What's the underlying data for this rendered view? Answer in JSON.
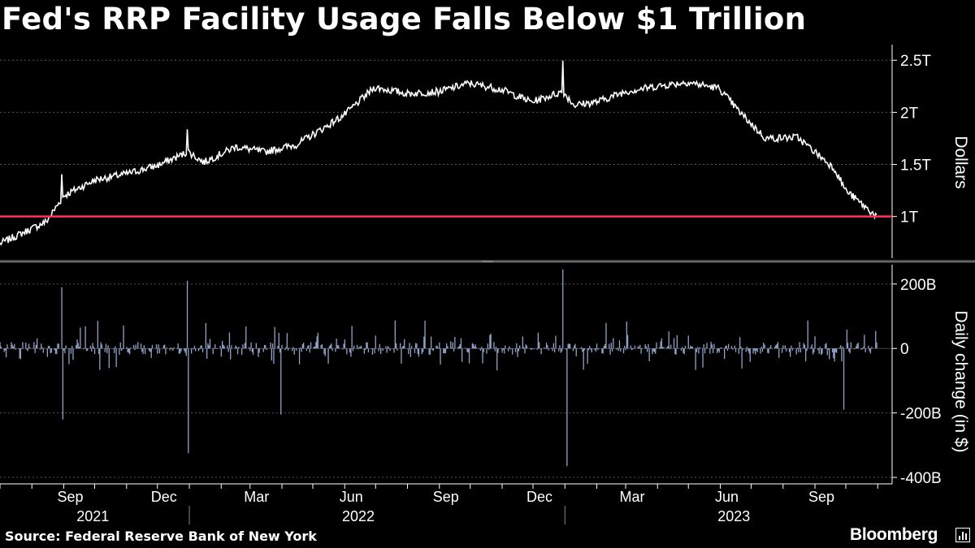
{
  "title": "Fed's RRP Facility Usage Falls Below $1 Trillion",
  "source": "Source: Federal Reserve Bank of New York",
  "brand": "Bloomberg",
  "colors": {
    "background": "#000000",
    "line": "#ffffff",
    "threshold": "#ff3355",
    "bars": "#8fa3c8",
    "grid": "#555555"
  },
  "chart_data": [
    {
      "type": "line",
      "ylabel": "Dollars",
      "yticks": [
        "2.5T",
        "2T",
        "1.5T",
        "1T"
      ],
      "ytick_values": [
        2.5,
        2.0,
        1.5,
        1.0
      ],
      "ylim": [
        0.6,
        2.65
      ],
      "grid": true,
      "reference_line": 1.0,
      "x_anchor_dates": [
        "2021-07-01",
        "2021-08-15",
        "2021-09-01",
        "2021-10-01",
        "2021-11-01",
        "2021-12-01",
        "2021-12-31",
        "2022-01-15",
        "2022-02-15",
        "2022-03-15",
        "2022-04-15",
        "2022-05-15",
        "2022-06-01",
        "2022-06-30",
        "2022-08-01",
        "2022-09-01",
        "2022-09-30",
        "2022-10-31",
        "2022-11-30",
        "2022-12-30",
        "2023-01-10",
        "2023-02-01",
        "2023-03-01",
        "2023-03-31",
        "2023-04-30",
        "2023-05-31",
        "2023-06-20",
        "2023-07-15",
        "2023-08-15",
        "2023-09-01",
        "2023-09-20",
        "2023-10-01",
        "2023-10-20",
        "2023-10-31"
      ],
      "values": [
        0.74,
        0.95,
        1.2,
        1.35,
        1.41,
        1.49,
        1.62,
        1.52,
        1.67,
        1.62,
        1.69,
        1.87,
        1.98,
        2.24,
        2.18,
        2.2,
        2.28,
        2.22,
        2.1,
        2.2,
        2.07,
        2.1,
        2.2,
        2.25,
        2.29,
        2.23,
        2.0,
        1.75,
        1.76,
        1.62,
        1.46,
        1.25,
        1.09,
        1.0
      ]
    },
    {
      "type": "bar",
      "ylabel": "Daily change (in $)",
      "yticks": [
        "200B",
        "0",
        "-200B",
        "-400B"
      ],
      "ytick_values": [
        200,
        0,
        -200,
        -400
      ],
      "ylim": [
        -420,
        260
      ],
      "grid": true,
      "spikes": [
        {
          "date": "2021-08-30",
          "value": 190
        },
        {
          "date": "2021-08-31",
          "value": -220
        },
        {
          "date": "2021-12-30",
          "value": 210
        },
        {
          "date": "2021-12-31",
          "value": -325
        },
        {
          "date": "2022-03-31",
          "value": -205
        },
        {
          "date": "2022-12-30",
          "value": 245
        },
        {
          "date": "2023-01-03",
          "value": -365
        },
        {
          "date": "2023-09-29",
          "value": -190
        },
        {
          "date": "2023-09-30",
          "value": 100
        }
      ]
    }
  ],
  "x_axis": {
    "ticks": [
      {
        "label": "Sep",
        "date": "2021-09-01"
      },
      {
        "label": "Dec",
        "date": "2021-12-01"
      },
      {
        "label": "Mar",
        "date": "2022-03-01"
      },
      {
        "label": "Jun",
        "date": "2022-06-01"
      },
      {
        "label": "Sep",
        "date": "2022-09-01"
      },
      {
        "label": "Dec",
        "date": "2022-12-01"
      },
      {
        "label": "Mar",
        "date": "2023-03-01"
      },
      {
        "label": "Jun",
        "date": "2023-06-01"
      },
      {
        "label": "Sep",
        "date": "2023-09-01"
      }
    ],
    "years": [
      {
        "label": "2021",
        "date": "2021-10-15"
      },
      {
        "label": "2022",
        "date": "2022-06-30"
      },
      {
        "label": "2023",
        "date": "2023-06-30"
      }
    ],
    "year_dividers": [
      "2022-01-01",
      "2023-01-01"
    ],
    "range": [
      "2021-07-01",
      "2023-11-15"
    ]
  }
}
